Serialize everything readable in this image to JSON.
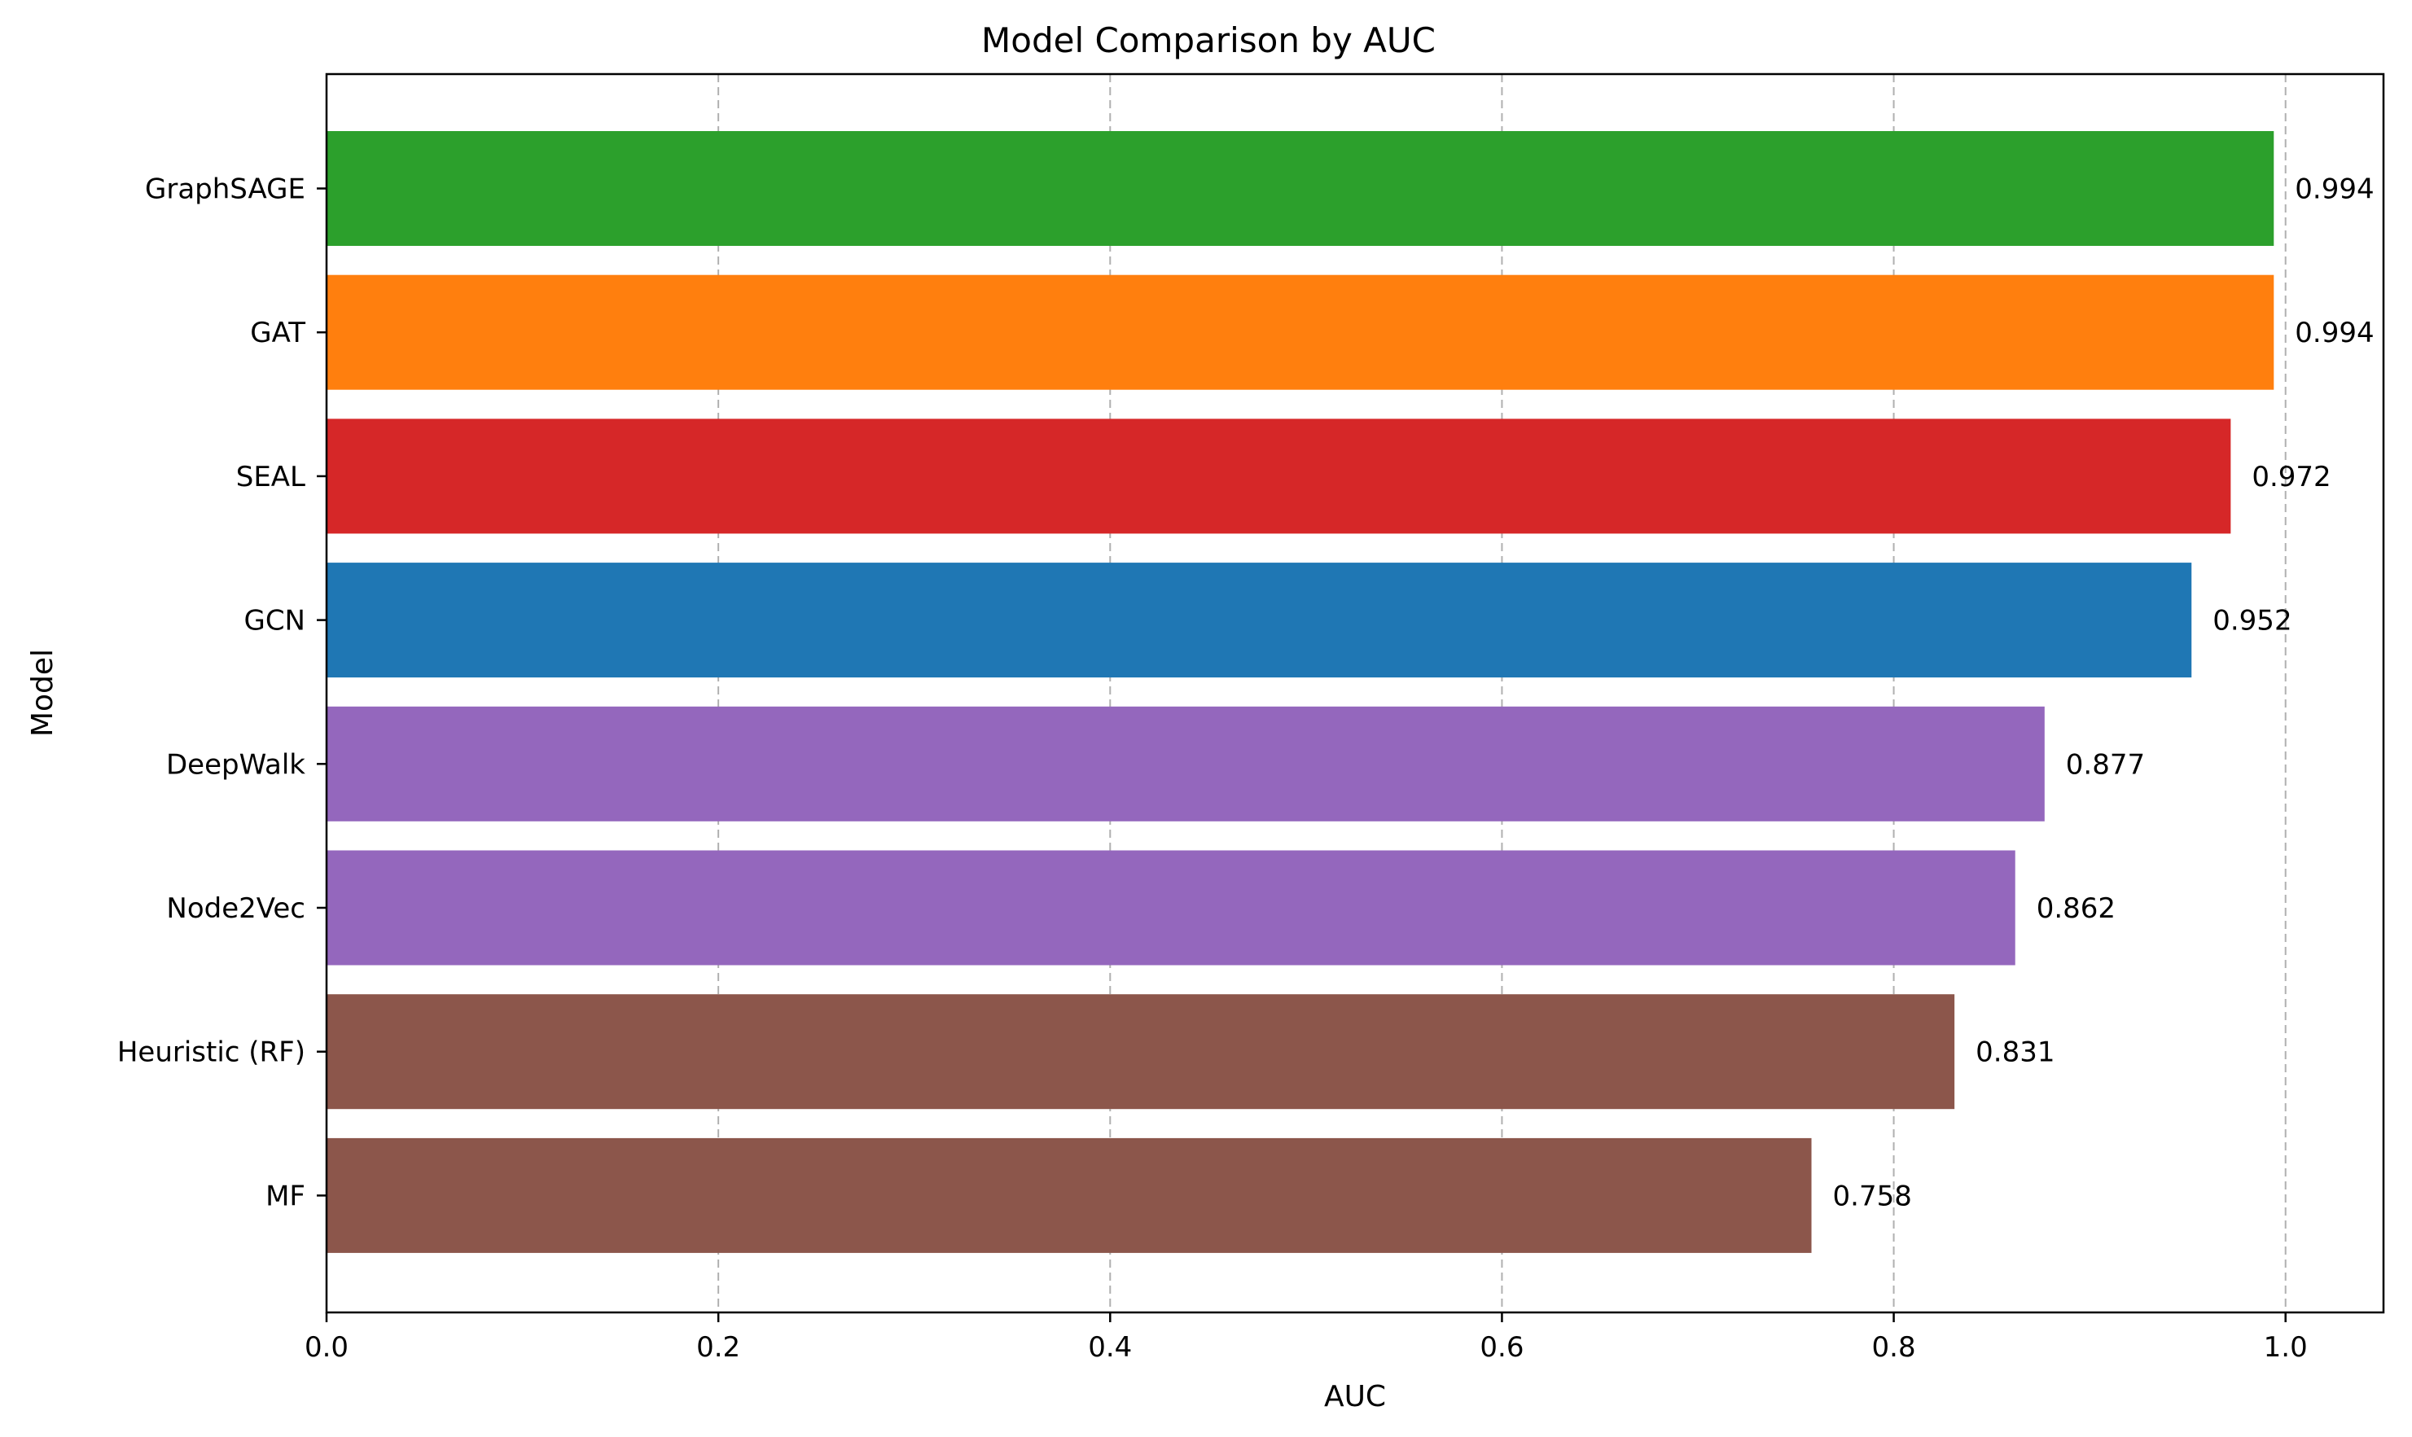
{
  "chart_data": {
    "type": "bar",
    "orientation": "horizontal",
    "title": "Model Comparison by AUC",
    "xlabel": "AUC",
    "ylabel": "Model",
    "xlim": [
      0.0,
      1.05
    ],
    "xticks": [
      0.0,
      0.2,
      0.4,
      0.6,
      0.8,
      1.0
    ],
    "xtick_labels": [
      "0.0",
      "0.2",
      "0.4",
      "0.6",
      "0.8",
      "1.0"
    ],
    "grid": {
      "x": true,
      "y": false,
      "style": "dashed"
    },
    "legend": "none",
    "categories": [
      "GraphSAGE",
      "GAT",
      "SEAL",
      "GCN",
      "DeepWalk",
      "Node2Vec",
      "Heuristic (RF)",
      "MF"
    ],
    "values": [
      0.994,
      0.994,
      0.972,
      0.952,
      0.877,
      0.862,
      0.831,
      0.758
    ],
    "value_labels": [
      "0.994",
      "0.994",
      "0.972",
      "0.952",
      "0.877",
      "0.862",
      "0.831",
      "0.758"
    ],
    "colors": [
      "#2ca02c",
      "#ff7f0e",
      "#d62728",
      "#1f77b4",
      "#9467bd",
      "#9467bd",
      "#8c564b",
      "#8c564b"
    ]
  }
}
